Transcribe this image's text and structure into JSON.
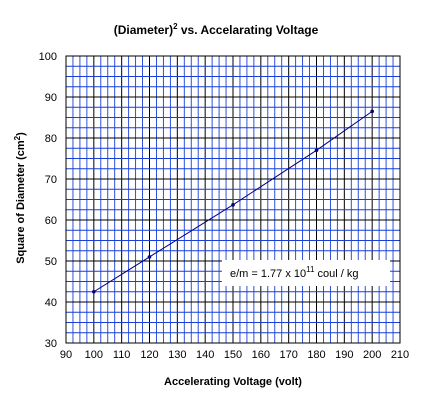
{
  "chart_data": {
    "type": "line",
    "title": "(Diameter)",
    "title_superscript": "2",
    "title_suffix": " vs. Accelarating Voltage",
    "xlabel": "Accelerating Voltage (volt)",
    "ylabel": "Square of Diameter (cm",
    "ylabel_superscript": "2",
    "ylabel_suffix": ")",
    "xlim": [
      90,
      210
    ],
    "ylim": [
      30,
      100
    ],
    "xticks": [
      90,
      100,
      110,
      120,
      130,
      140,
      150,
      160,
      170,
      180,
      190,
      200,
      210
    ],
    "yticks": [
      30,
      40,
      50,
      60,
      70,
      80,
      90,
      100
    ],
    "minor_x_step": 2.5,
    "minor_y_step": 2.5,
    "grid": true,
    "grid_color": "#1a3fd6",
    "line_color": "#000080",
    "series": [
      {
        "x": [
          100,
          120,
          150,
          180,
          200
        ],
        "y": [
          42.5,
          51.0,
          63.7,
          77.0,
          86.5
        ]
      }
    ],
    "annotation": {
      "text": "e/m = 1.77 x 10",
      "superscript": "11",
      "suffix": " coul / kg"
    }
  }
}
